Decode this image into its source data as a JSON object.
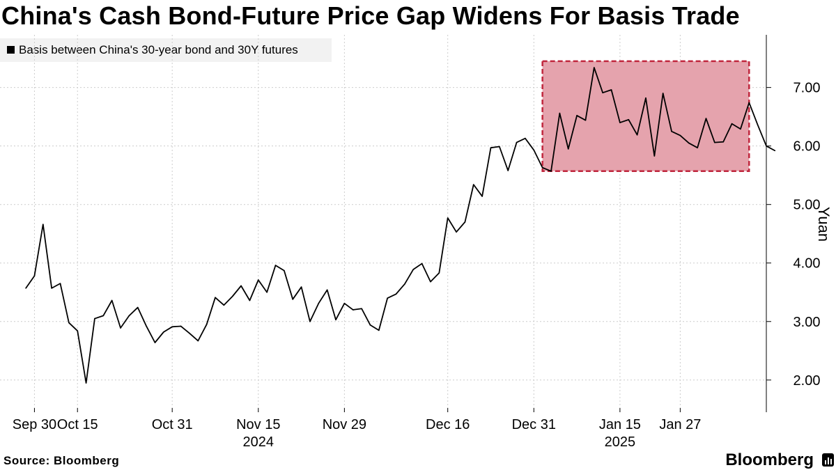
{
  "header": {
    "title": "China's Cash Bond-Future Price Gap Widens For Basis Trade"
  },
  "legend": {
    "label": "Basis between China's 30-year bond and 30Y futures",
    "color": "#000000"
  },
  "footer": {
    "source": "Source: Bloomberg",
    "brand": "Bloomberg"
  },
  "highlight": {
    "fill": "#e5a3ad",
    "border": "#c0263d",
    "x_start": 60,
    "x_end": 84,
    "y_start": 5.57,
    "y_end": 7.45
  },
  "chart_data": {
    "type": "line",
    "title": "China's Cash Bond-Future Price Gap Widens For Basis Trade",
    "ylabel": "Yuan",
    "xlabel": "",
    "ylim": [
      1.45,
      7.9
    ],
    "xlim": [
      -3,
      86
    ],
    "yticks": [
      {
        "value": 2,
        "label": "2.00"
      },
      {
        "value": 3,
        "label": "3.00"
      },
      {
        "value": 4,
        "label": "4.00"
      },
      {
        "value": 5,
        "label": "5.00"
      },
      {
        "value": 6,
        "label": "6.00"
      },
      {
        "value": 7,
        "label": "7.00"
      }
    ],
    "xticks": [
      {
        "pos": 1,
        "label": "Sep 30",
        "year": ""
      },
      {
        "pos": 6,
        "label": "Oct 15",
        "year": ""
      },
      {
        "pos": 17,
        "label": "Oct 31",
        "year": ""
      },
      {
        "pos": 27,
        "label": "Nov 15",
        "year": "2024"
      },
      {
        "pos": 37,
        "label": "Nov 29",
        "year": ""
      },
      {
        "pos": 49,
        "label": "Dec 16",
        "year": ""
      },
      {
        "pos": 59,
        "label": "Dec 31",
        "year": ""
      },
      {
        "pos": 69,
        "label": "Jan 15",
        "year": "2025"
      },
      {
        "pos": 76,
        "label": "Jan 27",
        "year": ""
      }
    ],
    "series": [
      {
        "name": "Basis between China's 30-year bond and 30Y futures",
        "values": [
          3.57,
          3.78,
          4.66,
          3.57,
          3.65,
          2.98,
          2.84,
          1.95,
          3.05,
          3.1,
          3.36,
          2.89,
          3.1,
          3.24,
          2.92,
          2.64,
          2.82,
          2.91,
          2.92,
          2.8,
          2.67,
          2.95,
          3.41,
          3.28,
          3.43,
          3.61,
          3.36,
          3.71,
          3.5,
          3.96,
          3.87,
          3.38,
          3.59,
          3.0,
          3.31,
          3.54,
          3.03,
          3.31,
          3.2,
          3.22,
          2.94,
          2.85,
          3.4,
          3.47,
          3.64,
          3.89,
          3.99,
          3.68,
          3.83,
          4.77,
          4.53,
          4.7,
          5.34,
          5.14,
          5.97,
          5.99,
          5.58,
          6.06,
          6.13,
          5.93,
          5.63,
          5.57,
          6.56,
          5.95,
          6.52,
          6.44,
          7.34,
          6.91,
          6.96,
          6.4,
          6.45,
          6.19,
          6.82,
          5.83,
          6.9,
          6.25,
          6.18,
          6.05,
          5.97,
          6.47,
          6.06,
          6.07,
          6.38,
          6.29,
          6.74,
          6.36,
          6.0,
          5.92
        ]
      }
    ]
  }
}
